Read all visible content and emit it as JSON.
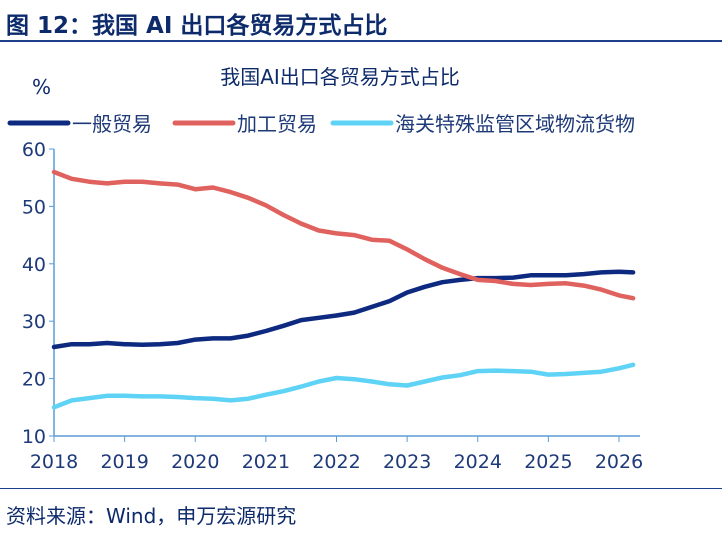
{
  "figure_title": "图 12：我国 AI 出口各贸易方式占比",
  "source": "资料来源：Wind，申万宏源研究",
  "chart_data": {
    "type": "line",
    "title": "我国AI出口各贸易方式占比",
    "ylabel": "%",
    "xlabel": "",
    "xlim": [
      2018,
      2026
    ],
    "ylim": [
      10,
      60
    ],
    "xticks": [
      "2018",
      "2019",
      "2020",
      "2021",
      "2022",
      "2023",
      "2024",
      "2025",
      "2026"
    ],
    "yticks": [
      "10",
      "20",
      "30",
      "40",
      "50",
      "60"
    ],
    "grid": false,
    "legend": "top",
    "x": [
      2018,
      2018.25,
      2018.5,
      2018.75,
      2019,
      2019.25,
      2019.5,
      2019.75,
      2020,
      2020.25,
      2020.5,
      2020.75,
      2021,
      2021.25,
      2021.5,
      2021.75,
      2022,
      2022.25,
      2022.5,
      2022.75,
      2023,
      2023.25,
      2023.5,
      2023.75,
      2024,
      2024.25,
      2024.5,
      2024.75,
      2025,
      2025.25,
      2025.5,
      2025.75,
      2026,
      2026.2
    ],
    "series": [
      {
        "name": "一般贸易",
        "color": "#0d2a80",
        "values": [
          25.5,
          26,
          26,
          26.2,
          26,
          25.9,
          26,
          26.2,
          26.8,
          27,
          27,
          27.5,
          28.3,
          29.2,
          30.2,
          30.6,
          31,
          31.5,
          32.5,
          33.5,
          35,
          36,
          36.8,
          37.2,
          37.5,
          37.5,
          37.6,
          38,
          38,
          38,
          38.2,
          38.5,
          38.6,
          38.5
        ]
      },
      {
        "name": "加工贸易",
        "color": "#e0625e",
        "values": [
          56,
          54.8,
          54.3,
          54,
          54.3,
          54.3,
          54,
          53.8,
          53,
          53.3,
          52.5,
          51.5,
          50.2,
          48.5,
          47,
          45.8,
          45.3,
          45,
          44.2,
          44,
          42.5,
          40.8,
          39.3,
          38.2,
          37.2,
          37,
          36.5,
          36.3,
          36.5,
          36.6,
          36.2,
          35.5,
          34.5,
          34
        ]
      },
      {
        "name": "海关特殊监管区域物流货物",
        "color": "#5fd3f5",
        "values": [
          15,
          16.2,
          16.6,
          17,
          17,
          16.9,
          16.9,
          16.8,
          16.6,
          16.5,
          16.2,
          16.5,
          17.2,
          17.8,
          18.6,
          19.5,
          20.1,
          19.9,
          19.5,
          19,
          18.8,
          19.5,
          20.2,
          20.6,
          21.3,
          21.4,
          21.3,
          21.2,
          20.7,
          20.8,
          21,
          21.2,
          21.8,
          22.4
        ]
      }
    ]
  }
}
